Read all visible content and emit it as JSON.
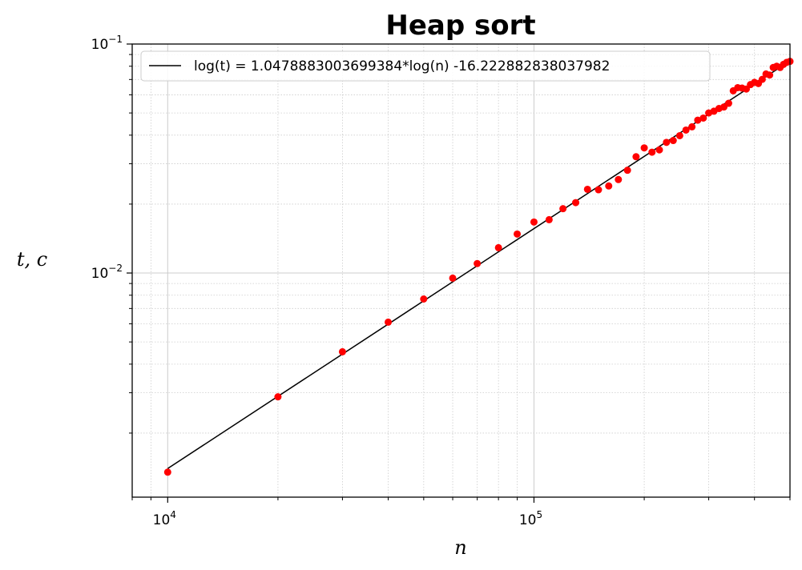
{
  "chart_data": {
    "type": "scatter",
    "title": "Heap sort",
    "xlabel": "n",
    "ylabel": "t, c",
    "xscale": "log",
    "yscale": "log",
    "xlim": [
      8000,
      500000
    ],
    "ylim": [
      0.00105,
      0.1
    ],
    "x_ticks": [
      {
        "value": 10000,
        "base": "10",
        "exp": "4"
      },
      {
        "value": 100000,
        "base": "10",
        "exp": "5"
      }
    ],
    "y_ticks": [
      {
        "value": 0.01,
        "base": "10",
        "exp": "−2"
      },
      {
        "value": 0.1,
        "base": "10",
        "exp": "−1"
      }
    ],
    "grid": {
      "major": true,
      "minor": true
    },
    "legend_position": "top-left",
    "colors": {
      "points": "#ff0000",
      "fit_line": "#000000",
      "grid": "#cccccc"
    },
    "series": [
      {
        "kind": "points",
        "points": [
          [
            10000,
            0.00135
          ],
          [
            20000,
            0.00288
          ],
          [
            30000,
            0.00453
          ],
          [
            40000,
            0.0061
          ],
          [
            50000,
            0.0077
          ],
          [
            60000,
            0.0095
          ],
          [
            70000,
            0.011
          ],
          [
            80000,
            0.0129
          ],
          [
            90000,
            0.0148
          ],
          [
            100000,
            0.0167
          ],
          [
            110000,
            0.0171
          ],
          [
            120000,
            0.0191
          ],
          [
            130000,
            0.0203
          ],
          [
            140000,
            0.0232
          ],
          [
            150000,
            0.0231
          ],
          [
            160000,
            0.024
          ],
          [
            170000,
            0.0256
          ],
          [
            180000,
            0.0281
          ],
          [
            190000,
            0.0322
          ],
          [
            200000,
            0.0352
          ],
          [
            210000,
            0.0337
          ],
          [
            220000,
            0.0345
          ],
          [
            230000,
            0.0372
          ],
          [
            240000,
            0.0379
          ],
          [
            250000,
            0.0398
          ],
          [
            260000,
            0.0421
          ],
          [
            270000,
            0.0435
          ],
          [
            280000,
            0.0465
          ],
          [
            290000,
            0.0475
          ],
          [
            300000,
            0.05
          ],
          [
            310000,
            0.0509
          ],
          [
            320000,
            0.0523
          ],
          [
            330000,
            0.0531
          ],
          [
            340000,
            0.0551
          ],
          [
            350000,
            0.0625
          ],
          [
            360000,
            0.0645
          ],
          [
            370000,
            0.0642
          ],
          [
            380000,
            0.0636
          ],
          [
            390000,
            0.0665
          ],
          [
            400000,
            0.068
          ],
          [
            410000,
            0.0672
          ],
          [
            420000,
            0.0701
          ],
          [
            430000,
            0.074
          ],
          [
            440000,
            0.0732
          ],
          [
            450000,
            0.079
          ],
          [
            460000,
            0.08
          ],
          [
            470000,
            0.079
          ],
          [
            480000,
            0.0815
          ],
          [
            490000,
            0.0832
          ],
          [
            500000,
            0.084
          ]
        ]
      },
      {
        "kind": "line",
        "name": "log(t) = 1.0478883003699384*log(n) -16.222882838037982",
        "slope": 1.0478883003699384,
        "intercept": -16.222882838037982,
        "x_range": [
          10000,
          500000
        ]
      }
    ]
  }
}
